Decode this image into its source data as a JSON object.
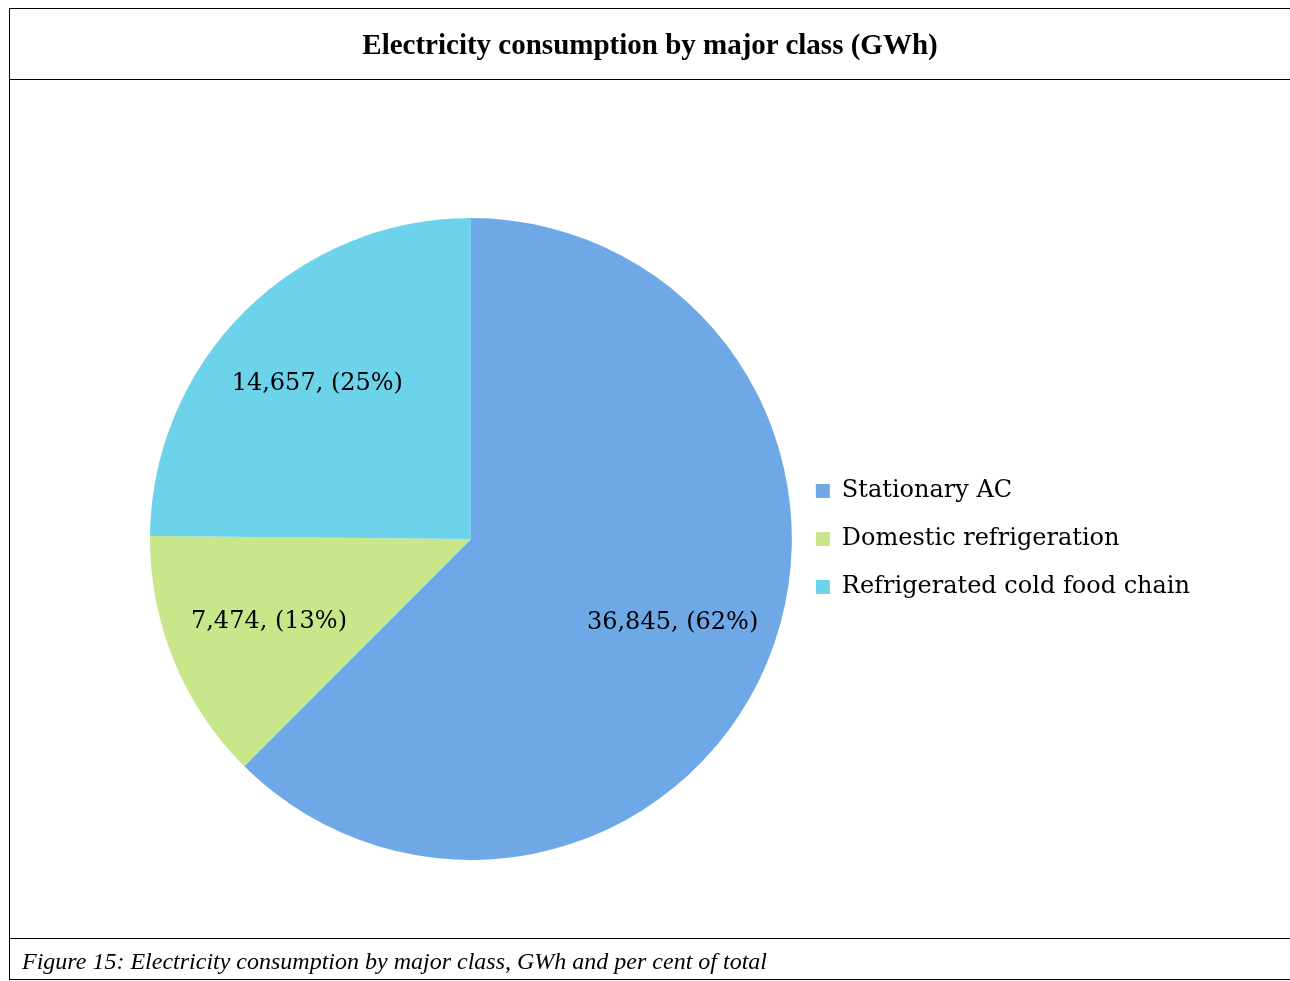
{
  "chart_data": {
    "type": "pie",
    "title": "Electricity consumption by major class (GWh)",
    "categories": [
      "Stationary AC",
      "Domestic refrigeration",
      "Refrigerated cold food chain"
    ],
    "values": [
      36845,
      7474,
      14657
    ],
    "colors": [
      "#6fa8e6",
      "#c8e68a",
      "#6dd3ea"
    ],
    "value_labels": [
      "36,845, (62%)",
      "7,474, (13%)",
      "14,657, (25%)"
    ],
    "legend": "right",
    "annotations": [
      "Figure 15: Electricity consumption by major class, GWh and per cent of total"
    ]
  }
}
